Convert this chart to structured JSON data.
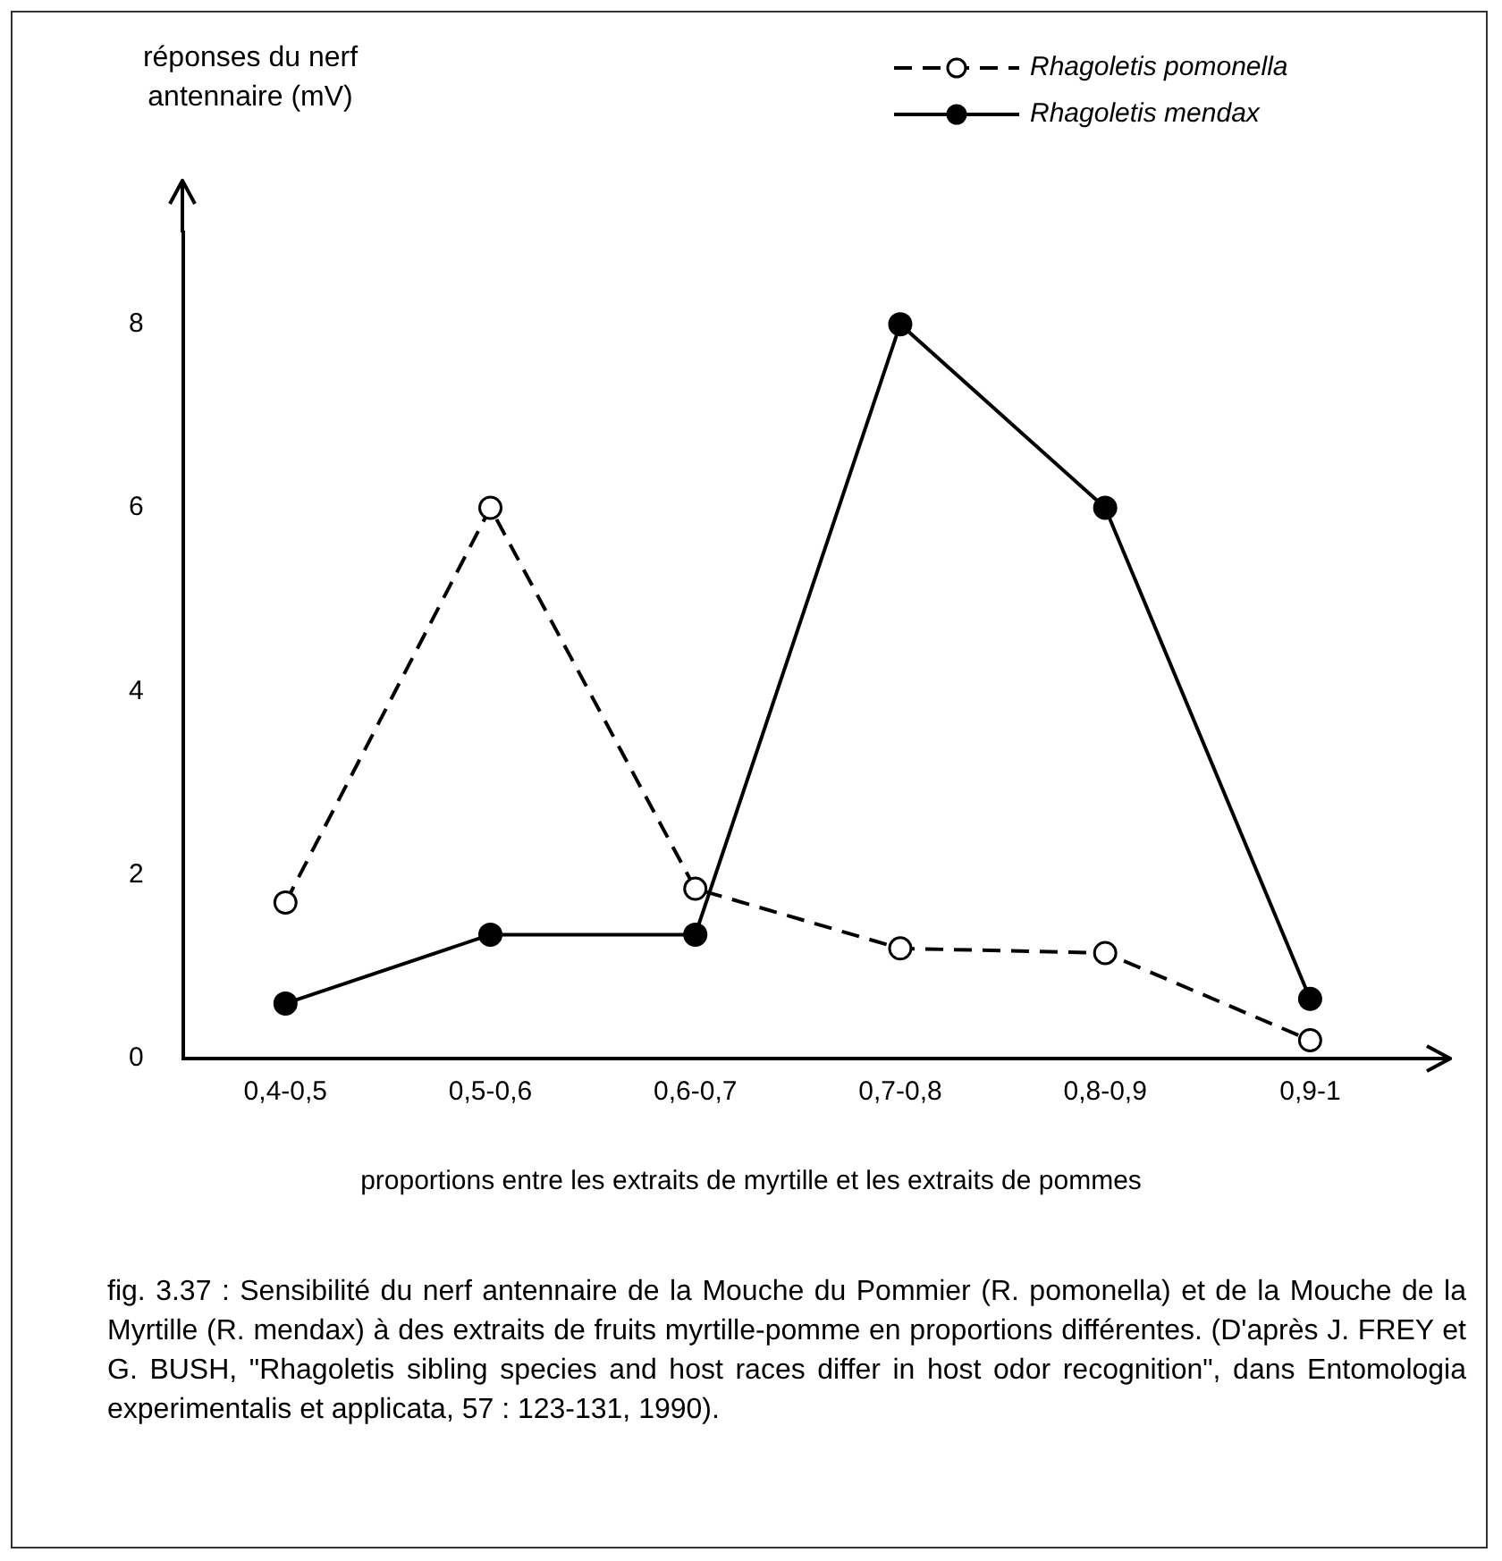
{
  "chart_data": {
    "type": "line",
    "ylabel": "réponses du nerf antennaire (mV)",
    "xlabel": "proportions entre les extraits de myrtille et les extraits de pommes",
    "categories": [
      "0,4-0,5",
      "0,5-0,6",
      "0,6-0,7",
      "0,7-0,8",
      "0,8-0,9",
      "0,9-1"
    ],
    "series": [
      {
        "name": "Rhagoletis pomonella",
        "color": "#000000",
        "line_style": "dashed",
        "values": [
          1.7,
          6,
          1.85,
          1.2,
          1.15,
          0.2
        ]
      },
      {
        "name": "Rhagoletis mendax",
        "color": "#000000",
        "line_style": "solid",
        "values": [
          0.6,
          1.35,
          1.35,
          8,
          6,
          0.65
        ]
      }
    ],
    "ylim": [
      0,
      9
    ],
    "yticks": [
      0,
      2,
      4,
      6,
      8
    ],
    "grid": false,
    "legend": "top right",
    "marker": "circle",
    "annotations": [
      "fig. 3.37 : Sensibilité du nerf antennaire de la Mouche du Pommier (R. pomonella) et de la Mouche de la Myrtille (R. mendax) à des extraits de fruits myrtille-pomme en proportions différentes. (D'après J. FREY et G. BUSH, \"Rhagoletis sibling species and host races differ in host odor recognition\", dans Entomologia experimentalis et applicata, 57 : 123-131, 1990)."
    ]
  }
}
